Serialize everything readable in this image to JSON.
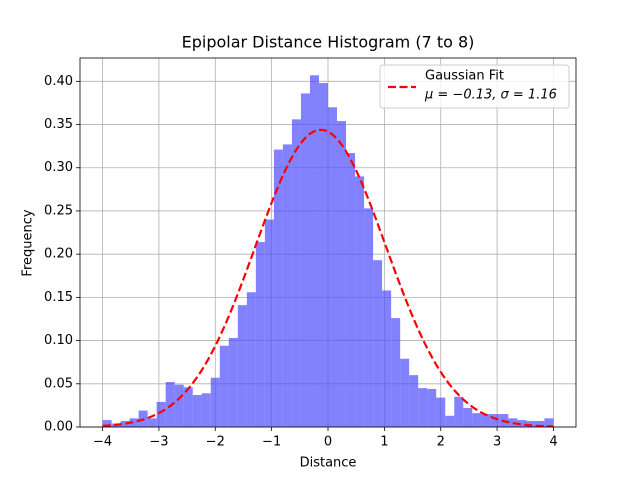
{
  "chart_data": {
    "type": "histogram",
    "title": "Epipolar Distance Histogram (7 to 8)",
    "xlabel": "Distance",
    "ylabel": "Frequency",
    "bins": [
      -4,
      -3.84,
      -3.68,
      -3.52,
      -3.36,
      -3.2,
      -3.04,
      -2.88,
      -2.72,
      -2.56,
      -2.4,
      -2.24,
      -2.08,
      -1.92,
      -1.76,
      -1.6,
      -1.44,
      -1.28,
      -1.12,
      -0.96,
      -0.8,
      -0.64,
      -0.48,
      -0.32,
      -0.16,
      0,
      0.16,
      0.32,
      0.48,
      0.64,
      0.8,
      0.96,
      1.12,
      1.28,
      1.44,
      1.6,
      1.76,
      1.92,
      2.08,
      2.24,
      2.4,
      2.56,
      2.72,
      2.88,
      3.04,
      3.2,
      3.36,
      3.52,
      3.68,
      3.84,
      4
    ],
    "values": [
      0.008,
      0.004,
      0.007,
      0.01,
      0.019,
      0.01,
      0.029,
      0.052,
      0.049,
      0.046,
      0.037,
      0.039,
      0.057,
      0.094,
      0.103,
      0.141,
      0.156,
      0.214,
      0.24,
      0.321,
      0.327,
      0.356,
      0.386,
      0.407,
      0.398,
      0.37,
      0.354,
      0.317,
      0.29,
      0.253,
      0.193,
      0.158,
      0.126,
      0.079,
      0.06,
      0.045,
      0.044,
      0.034,
      0.013,
      0.035,
      0.022,
      0.016,
      0.015,
      0.015,
      0.015,
      0.01,
      0.008,
      0.007,
      0.007,
      0.01
    ],
    "color": "#4d4dff",
    "fit": {
      "name": "Gaussian Fit",
      "label": "μ = −0.13, σ = 1.16",
      "mu": -0.13,
      "sigma": 1.16,
      "color": "#ff0000"
    },
    "xlim": [
      -4.4,
      4.4
    ],
    "ylim": [
      0,
      0.427
    ],
    "xticks": [
      {
        "value": -4,
        "label": "−4"
      },
      {
        "value": -3,
        "label": "−3"
      },
      {
        "value": -2,
        "label": "−2"
      },
      {
        "value": -1,
        "label": "−1"
      },
      0,
      1,
      2,
      3,
      4
    ],
    "yticks": [
      {
        "value": 0,
        "label": "0.00"
      },
      {
        "value": 0.05,
        "label": "0.05"
      },
      {
        "value": 0.1,
        "label": "0.10"
      },
      {
        "value": 0.15,
        "label": "0.15"
      },
      {
        "value": 0.2,
        "label": "0.20"
      },
      {
        "value": 0.25,
        "label": "0.25"
      },
      {
        "value": 0.3,
        "label": "0.30"
      },
      {
        "value": 0.35,
        "label": "0.35"
      },
      {
        "value": 0.4,
        "label": "0.40"
      }
    ],
    "grid": true,
    "legend": "upper right"
  }
}
